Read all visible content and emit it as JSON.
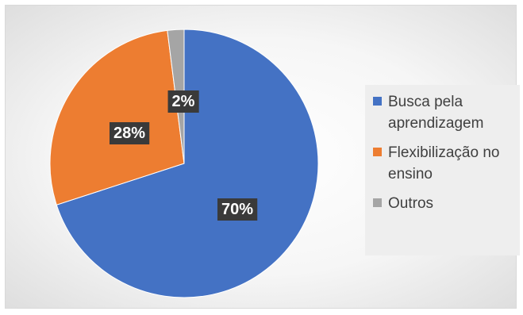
{
  "chart_data": {
    "type": "pie",
    "slices": [
      {
        "name": "Busca pela aprendizagem",
        "legend_lines": [
          "Busca pela",
          "aprendizagem"
        ],
        "value": 70,
        "label": "70%",
        "color": "#4472c4"
      },
      {
        "name": "Flexibilização no ensino",
        "legend_lines": [
          "Flexibilização no",
          "ensino"
        ],
        "value": 28,
        "label": "28%",
        "color": "#ed7d31"
      },
      {
        "name": "Outros",
        "legend_lines": [
          "Outros"
        ],
        "value": 2,
        "label": "2%",
        "color": "#a5a5a5"
      }
    ],
    "legend_position": "right"
  }
}
